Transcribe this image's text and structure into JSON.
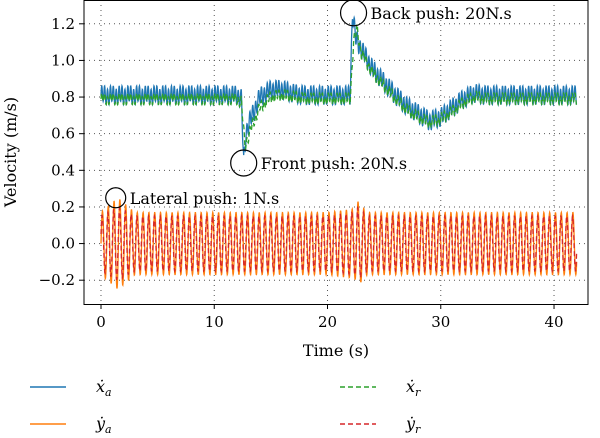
{
  "chart_data": {
    "type": "line",
    "xlabel": "Time (s)",
    "ylabel": "Velocity (m/s)",
    "xlim": [
      -1.5,
      43
    ],
    "ylim": [
      -0.33,
      1.33
    ],
    "xticks": [
      0,
      10,
      20,
      30,
      40
    ],
    "yticks": [
      -0.2,
      0.0,
      0.2,
      0.4,
      0.6,
      0.8,
      1.0,
      1.2
    ],
    "xtick_labels": [
      "0",
      "10",
      "20",
      "30",
      "40"
    ],
    "ytick_labels": [
      "−0.2",
      "0.0",
      "0.2",
      "0.4",
      "0.6",
      "0.8",
      "1.0",
      "1.2"
    ],
    "grid": true,
    "legend_position": "bottom",
    "colors": {
      "xa": "#1f77b4",
      "ya": "#ff7f0e",
      "xr": "#2ca02c",
      "yr": "#d62728"
    },
    "series": [
      {
        "key": "xa",
        "symbol": "ẋ",
        "sub": "a",
        "style": "solid",
        "x": [
          0,
          2,
          4,
          6,
          8,
          10,
          12,
          12.4,
          12.6,
          12.8,
          13.0,
          13.5,
          14.0,
          15.0,
          16.0,
          17.0,
          18.0,
          19.0,
          20.0,
          21.0,
          22.0,
          22.2,
          22.5,
          23.0,
          24.0,
          25.0,
          26.0,
          27.0,
          28.0,
          29.0,
          30.0,
          31.0,
          32.0,
          33.0,
          34.0,
          36.0,
          38.0,
          40.0,
          42.0
        ],
        "y": [
          0.81,
          0.81,
          0.81,
          0.81,
          0.81,
          0.81,
          0.81,
          0.79,
          0.44,
          0.6,
          0.65,
          0.72,
          0.8,
          0.84,
          0.84,
          0.82,
          0.81,
          0.81,
          0.81,
          0.81,
          0.81,
          1.26,
          1.12,
          1.06,
          0.95,
          0.88,
          0.81,
          0.75,
          0.71,
          0.67,
          0.69,
          0.74,
          0.79,
          0.82,
          0.81,
          0.81,
          0.81,
          0.81,
          0.81
        ]
      },
      {
        "key": "xr",
        "symbol": "ẋ",
        "sub": "r",
        "style": "dashed",
        "x": [
          0,
          2,
          4,
          6,
          8,
          10,
          12,
          12.4,
          12.7,
          13.0,
          13.5,
          14.0,
          15.0,
          16.0,
          17.0,
          18.0,
          19.0,
          20.0,
          21.0,
          22.0,
          22.3,
          22.6,
          23.0,
          24.0,
          25.0,
          26.0,
          27.0,
          28.0,
          29.0,
          30.0,
          31.0,
          32.0,
          33.0,
          34.0,
          36.0,
          38.0,
          40.0,
          42.0
        ],
        "y": [
          0.79,
          0.79,
          0.79,
          0.79,
          0.79,
          0.79,
          0.79,
          0.77,
          0.54,
          0.58,
          0.67,
          0.74,
          0.8,
          0.81,
          0.8,
          0.79,
          0.79,
          0.79,
          0.79,
          0.79,
          1.1,
          1.17,
          1.04,
          0.93,
          0.86,
          0.79,
          0.73,
          0.69,
          0.66,
          0.68,
          0.72,
          0.77,
          0.8,
          0.79,
          0.79,
          0.79,
          0.79,
          0.79
        ]
      },
      {
        "key": "ya",
        "symbol": "ẏ",
        "sub": "a",
        "style": "solid",
        "x": [
          0,
          1.5,
          3,
          10,
          20,
          22.4,
          22.7,
          23.5,
          30,
          42
        ],
        "y": [
          0.0,
          0.0,
          0.0,
          0.0,
          0.0,
          0.0,
          0.0,
          0.0,
          0.0,
          0.0
        ],
        "amplitude": [
          0.17,
          0.25,
          0.17,
          0.17,
          0.17,
          0.19,
          0.23,
          0.17,
          0.17,
          0.17
        ]
      },
      {
        "key": "yr",
        "symbol": "ẏ",
        "sub": "r",
        "style": "dashed",
        "x": [
          0,
          1.5,
          3,
          10,
          20,
          22.4,
          22.7,
          23.5,
          30,
          42
        ],
        "y": [
          0.0,
          0.0,
          0.0,
          0.0,
          0.0,
          0.0,
          0.0,
          0.0,
          0.0,
          0.0
        ],
        "amplitude": [
          0.15,
          0.2,
          0.15,
          0.15,
          0.15,
          0.17,
          0.2,
          0.15,
          0.15,
          0.15
        ]
      }
    ],
    "annotations": [
      {
        "text": "Back push: 20N.s",
        "x": 22.3,
        "y": 1.26
      },
      {
        "text": "Front push: 20N.s",
        "x": 12.6,
        "y": 0.44
      },
      {
        "text": "Lateral push: 1N.s",
        "x": 1.3,
        "y": 0.25
      }
    ]
  }
}
